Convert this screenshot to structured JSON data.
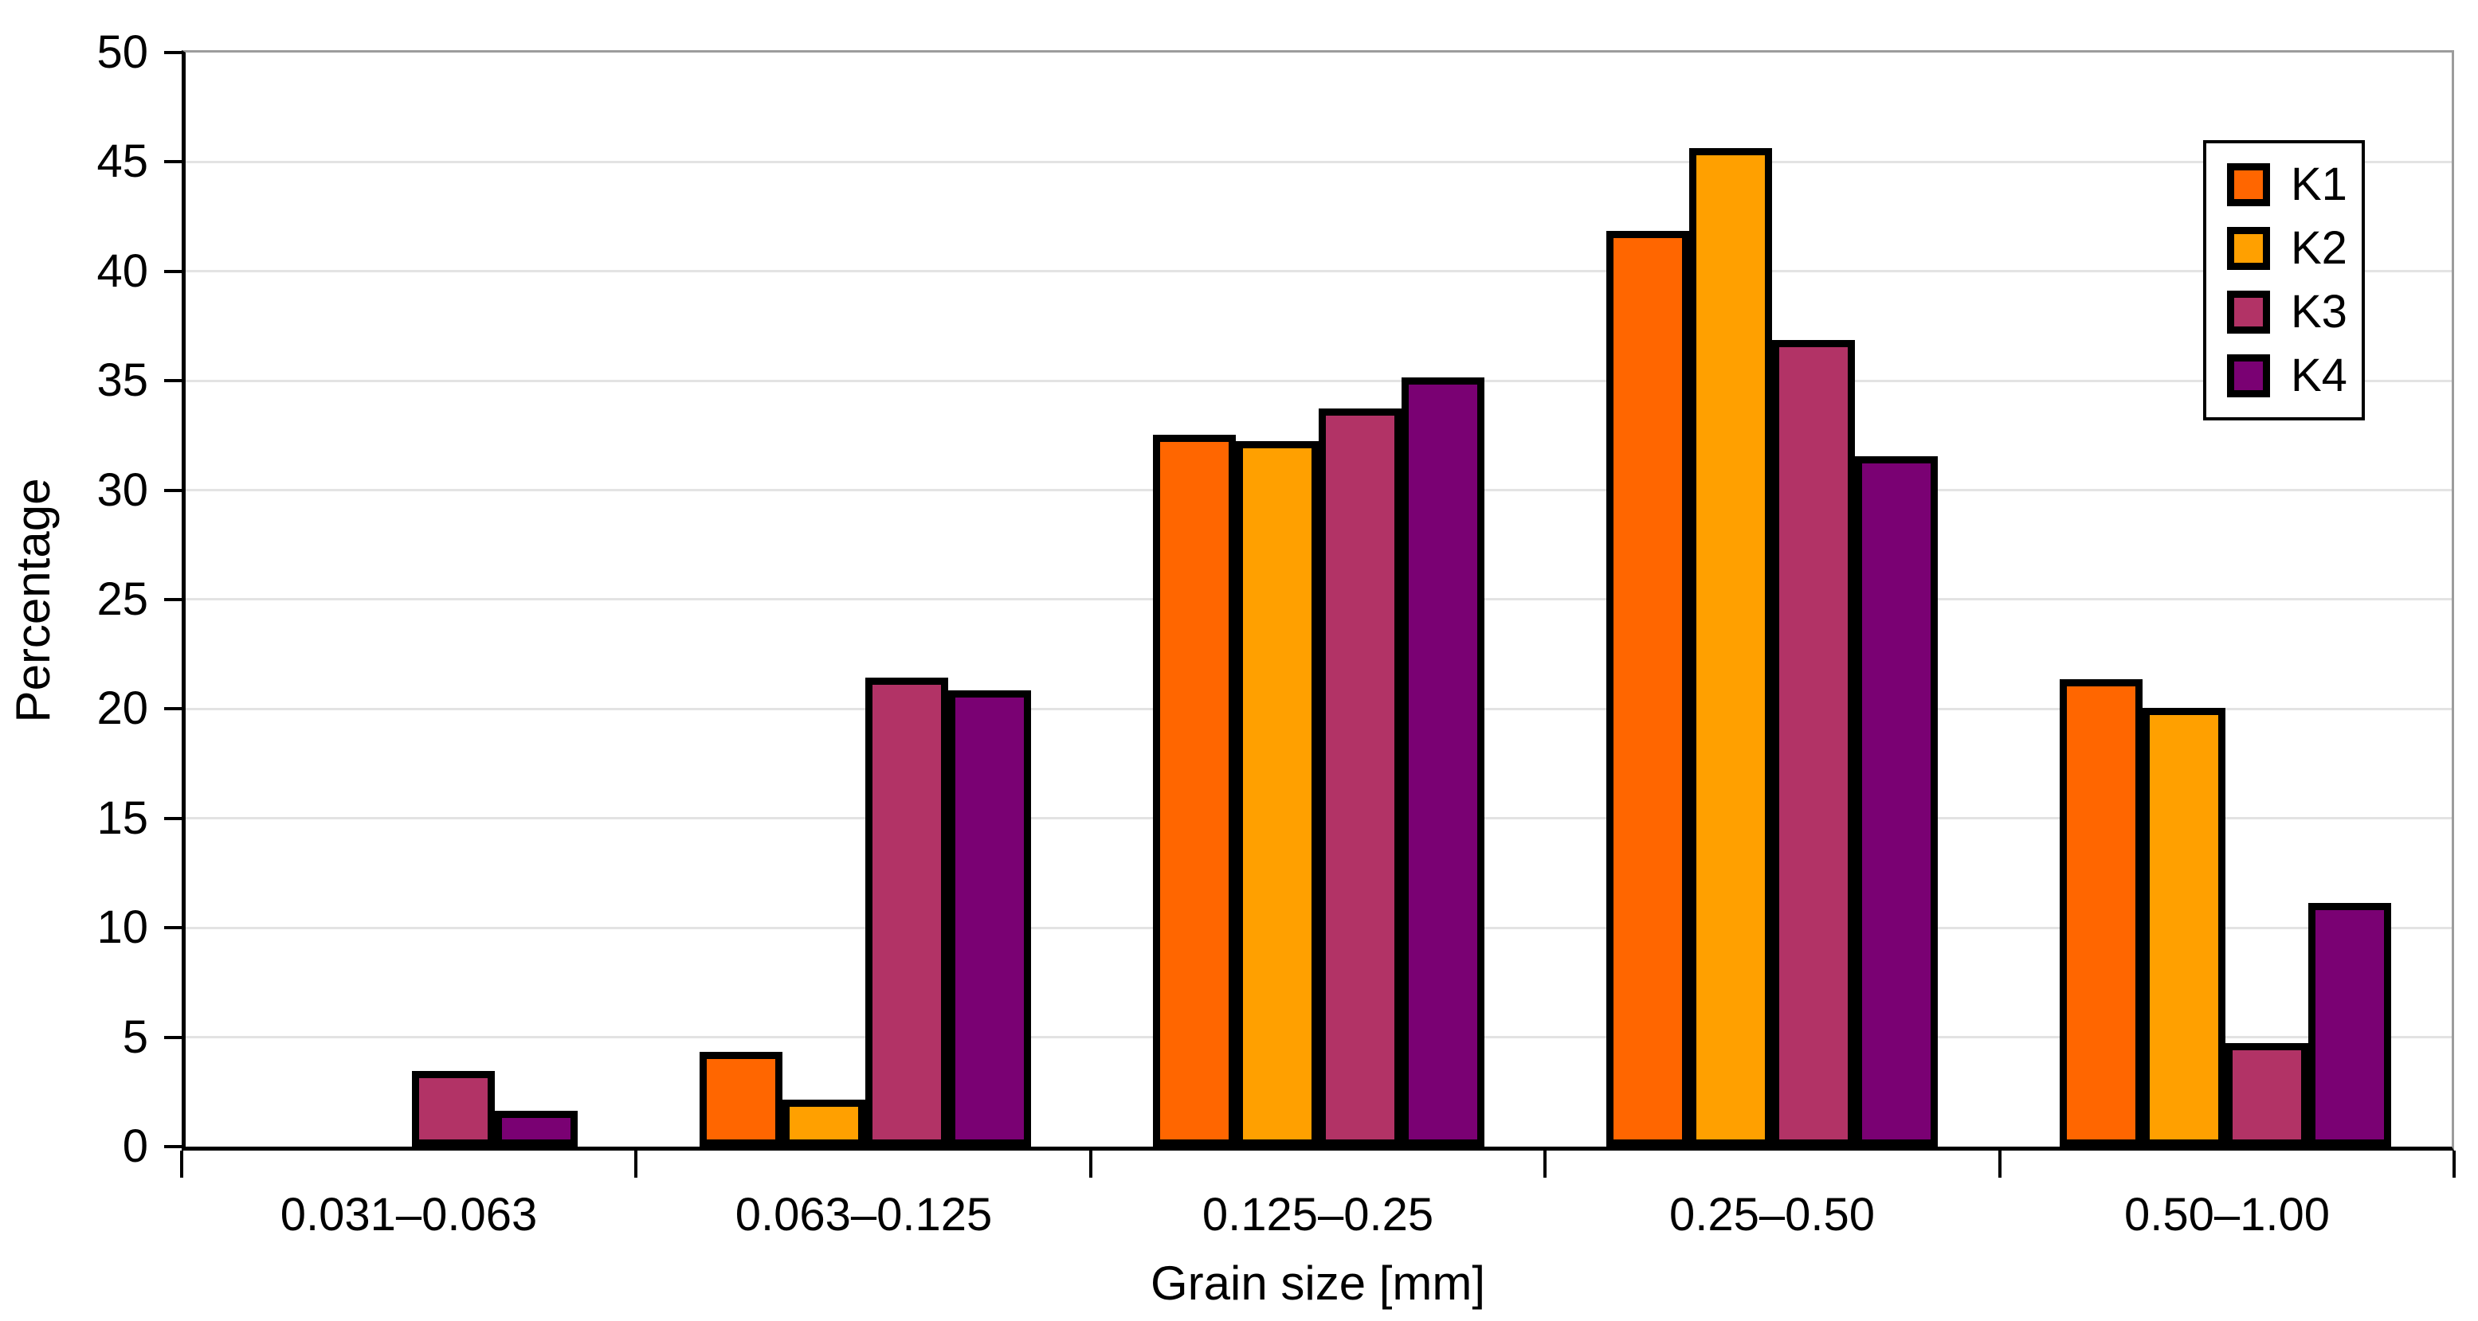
{
  "chart_data": {
    "type": "bar",
    "title": "",
    "xlabel": "Grain size [mm]",
    "ylabel": "Percentage",
    "categories": [
      "0.031–0.063",
      "0.063–0.125",
      "0.125–0.25",
      "0.25–0.50",
      "0.50–1.00"
    ],
    "series": [
      {
        "name": "K1",
        "color": "#FF6600",
        "values": [
          0,
          4.2,
          32.4,
          41.7,
          21.2
        ]
      },
      {
        "name": "K2",
        "color": "#FFA000",
        "values": [
          0,
          2.0,
          32.1,
          45.5,
          19.9
        ]
      },
      {
        "name": "K3",
        "color": "#B23366",
        "values": [
          3.3,
          21.3,
          33.6,
          36.7,
          4.6
        ]
      },
      {
        "name": "K4",
        "color": "#7A0173",
        "values": [
          1.5,
          20.7,
          35.0,
          31.4,
          11.0
        ]
      }
    ],
    "ylim": [
      0,
      50
    ],
    "ytick_step": 5,
    "yticks": [
      0,
      5,
      10,
      15,
      20,
      25,
      30,
      35,
      40,
      45,
      50
    ],
    "grid": "horizontal-light-gray",
    "legend_position": "top-right",
    "bar_outline_color": "#000000",
    "axis_color": "#000000",
    "frame_top_right_color": "#9c9c9c",
    "gridline_color": "#e3e3e3"
  }
}
